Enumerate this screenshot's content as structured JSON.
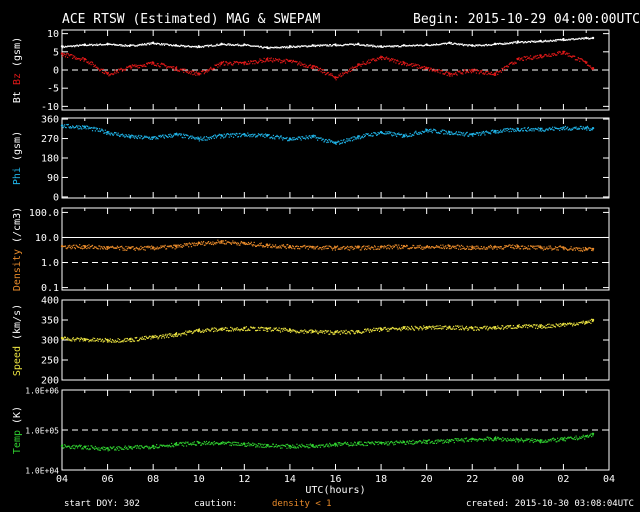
{
  "header": {
    "title": "ACE RTSW (Estimated) MAG & SWEPAM",
    "begin": "Begin: 2015-10-29 04:00:00UTC"
  },
  "footer": {
    "start_doy": "start DOY: 302",
    "caution": "caution:",
    "density_note": "density < 1",
    "created": "created: 2015-10-30 03:08:04UTC"
  },
  "colors": {
    "background": "#000000",
    "axes": "#ffffff",
    "bt": "#ffffff",
    "bz": "#e01818",
    "phi": "#20b4e8",
    "density": "#e88a2a",
    "speed": "#e8e040",
    "temp": "#30d030",
    "caution_text": "#e88a2a"
  },
  "chart_data": [
    {
      "type": "scatter",
      "panel": "mag",
      "ylabel": "Bt Bz (gsm)",
      "ylabel_parts": [
        {
          "text": "Bt",
          "color": "bt"
        },
        {
          "text": "Bz",
          "color": "bz"
        },
        {
          "text": "(gsm)",
          "color": "axes"
        }
      ],
      "ylim": [
        -11,
        11
      ],
      "yticks": [
        10,
        5,
        0,
        -5,
        -10
      ],
      "ytick_labels": [
        "10",
        "5",
        "0",
        "-5",
        "-10"
      ],
      "dashed_lines": [
        0
      ],
      "series": [
        {
          "key": "bt",
          "color": "bt",
          "t": [
            0,
            1,
            2,
            3,
            4,
            5,
            6,
            7,
            8,
            9,
            10,
            11,
            12,
            13,
            14,
            15,
            16,
            17,
            18,
            19,
            20,
            21,
            22,
            23,
            23.3
          ],
          "y": [
            6.5,
            7,
            7.2,
            6.8,
            7.5,
            6.8,
            6.5,
            7.2,
            7,
            6.2,
            6.5,
            6.8,
            7,
            7.2,
            6.5,
            6.8,
            7,
            7.5,
            6.8,
            7.2,
            7.8,
            8,
            8.5,
            8.8,
            8.8
          ]
        },
        {
          "key": "bz",
          "color": "bz",
          "t": [
            0,
            1,
            2,
            3,
            4,
            5,
            6,
            7,
            8,
            9,
            10,
            11,
            12,
            13,
            14,
            15,
            16,
            17,
            18,
            19,
            20,
            21,
            22,
            23,
            23.3
          ],
          "y": [
            4.5,
            3,
            -1,
            1,
            2,
            0.5,
            -1,
            2,
            2,
            3,
            2.5,
            1,
            -2,
            1.5,
            3.5,
            2,
            0.5,
            -1,
            0,
            -1,
            3,
            4,
            5,
            2,
            0.5
          ]
        }
      ]
    },
    {
      "type": "scatter",
      "panel": "phi",
      "ylabel": "Phi (gsm)",
      "ylabel_parts": [
        {
          "text": "Phi",
          "color": "phi"
        },
        {
          "text": "(gsm)",
          "color": "axes"
        }
      ],
      "ylim": [
        -5,
        365
      ],
      "yticks": [
        360,
        270,
        180,
        90,
        0
      ],
      "ytick_labels": [
        "360",
        "270",
        "180",
        "90",
        "0"
      ],
      "dashed_lines": [],
      "series": [
        {
          "key": "phi",
          "color": "phi",
          "t": [
            0,
            1,
            2,
            3,
            4,
            5,
            6,
            7,
            8,
            9,
            10,
            11,
            12,
            13,
            14,
            15,
            16,
            17,
            18,
            19,
            20,
            21,
            22,
            23,
            23.3
          ],
          "y": [
            330,
            325,
            300,
            280,
            275,
            290,
            270,
            285,
            290,
            285,
            270,
            280,
            250,
            280,
            300,
            285,
            310,
            300,
            290,
            305,
            315,
            315,
            320,
            320,
            318
          ]
        }
      ]
    },
    {
      "type": "scatter",
      "panel": "density",
      "ylabel": "Density (/cm3)",
      "ylabel_parts": [
        {
          "text": "Density",
          "color": "density"
        },
        {
          "text": "(/cm3)",
          "color": "axes"
        }
      ],
      "scale": "log",
      "ylim": [
        0.08,
        150
      ],
      "yticks": [
        100,
        10,
        1,
        0.1
      ],
      "ytick_labels": [
        "100.0",
        "10.0",
        "1.0",
        "0.1"
      ],
      "dashed_lines": [
        1
      ],
      "solid_lines": [
        10
      ],
      "series": [
        {
          "key": "density",
          "color": "density",
          "t": [
            0,
            1,
            2,
            3,
            4,
            5,
            6,
            7,
            8,
            9,
            10,
            11,
            12,
            13,
            14,
            15,
            16,
            17,
            18,
            19,
            20,
            21,
            22,
            23,
            23.3
          ],
          "y": [
            4.5,
            4.5,
            4,
            3.8,
            4,
            4.5,
            6,
            7,
            6,
            5,
            4.5,
            4.2,
            4,
            4,
            4.3,
            4.5,
            4.2,
            4.5,
            4,
            4.3,
            4.5,
            4,
            4,
            3.5,
            3.5
          ]
        }
      ]
    },
    {
      "type": "scatter",
      "panel": "speed",
      "ylabel": "Speed (km/s)",
      "ylabel_parts": [
        {
          "text": "Speed",
          "color": "speed"
        },
        {
          "text": "(km/s)",
          "color": "axes"
        }
      ],
      "ylim": [
        200,
        400
      ],
      "yticks": [
        400,
        350,
        300,
        250,
        200
      ],
      "ytick_labels": [
        "400",
        "350",
        "300",
        "250",
        "200"
      ],
      "dashed_lines": [],
      "series": [
        {
          "key": "speed",
          "color": "speed",
          "t": [
            0,
            1,
            2,
            3,
            4,
            5,
            6,
            7,
            8,
            9,
            10,
            11,
            12,
            13,
            14,
            15,
            16,
            17,
            18,
            19,
            20,
            21,
            22,
            23,
            23.3
          ],
          "y": [
            305,
            302,
            300,
            302,
            308,
            315,
            325,
            328,
            330,
            328,
            325,
            322,
            320,
            322,
            328,
            330,
            332,
            333,
            330,
            332,
            335,
            335,
            340,
            345,
            350
          ]
        }
      ]
    },
    {
      "type": "scatter",
      "panel": "temp",
      "ylabel": "Temp (K)",
      "ylabel_parts": [
        {
          "text": "Temp",
          "color": "temp"
        },
        {
          "text": "(K)",
          "color": "axes"
        }
      ],
      "scale": "log",
      "ylim": [
        10000,
        1000000
      ],
      "yticks": [
        1000000,
        100000,
        10000
      ],
      "ytick_labels": [
        "1.0E+06",
        "1.0E+05",
        "1.0E+04"
      ],
      "dashed_lines": [
        100000
      ],
      "series": [
        {
          "key": "temp",
          "color": "temp",
          "t": [
            0,
            1,
            2,
            3,
            4,
            5,
            6,
            7,
            8,
            9,
            10,
            11,
            12,
            13,
            14,
            15,
            16,
            17,
            18,
            19,
            20,
            21,
            22,
            23,
            23.3
          ],
          "y": [
            40000,
            38000,
            35000,
            37000,
            40000,
            45000,
            48000,
            47000,
            45000,
            42000,
            40000,
            42000,
            45000,
            47000,
            48000,
            50000,
            52000,
            55000,
            60000,
            62000,
            58000,
            55000,
            60000,
            70000,
            80000
          ]
        }
      ]
    }
  ],
  "x_axis": {
    "xlabel": "UTC(hours)",
    "xlim": [
      0,
      24
    ],
    "tick_hours": [
      0,
      2,
      4,
      6,
      8,
      10,
      12,
      14,
      16,
      18,
      20,
      22,
      24
    ],
    "tick_labels": [
      "04",
      "06",
      "08",
      "10",
      "12",
      "14",
      "16",
      "18",
      "20",
      "22",
      "00",
      "02",
      "04"
    ]
  }
}
